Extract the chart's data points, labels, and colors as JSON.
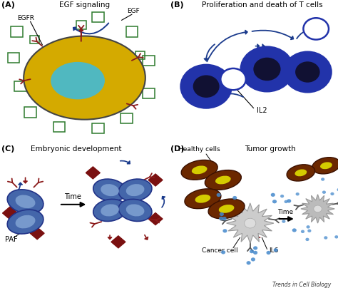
{
  "bg_color": "#ffffff",
  "label_A": "(A)",
  "label_B": "(B)",
  "label_C": "(C)",
  "label_D": "(D)",
  "title_A": "EGF signaling",
  "title_B": "Proliferation and death of T cells",
  "title_C": "Embryonic development",
  "title_D": "Tumor growth",
  "cell_body_color": "#d4aa00",
  "cell_nucleus_color": "#50b8c0",
  "egf_color": "#2d7a2d",
  "receptor_color": "#8b1a1a",
  "arrow_blue": "#1a3a8c",
  "arrow_red": "#8b1a1a",
  "tcell_fill": "#2233aa",
  "tcell_dark": "#111133",
  "tcell_empty_fill": "#ffffff",
  "embryo_outer": "#4466aa",
  "embryo_inner": "#7799cc",
  "paf_color": "#7a1010",
  "healthy_cell_outer": "#6b2800",
  "healthy_cell_inner": "#d4cc00",
  "cancer_color": "#cccccc",
  "il6_dot_color": "#4488cc",
  "footer_text": "Trends in Cell Biology"
}
